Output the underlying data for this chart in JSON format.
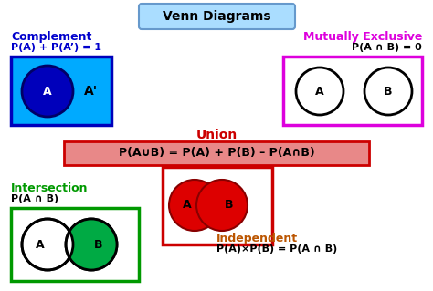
{
  "title": "Venn Diagrams",
  "bg_color": "#ffffff",
  "outer_border_color": "#999999",
  "complement_label": "Complement",
  "complement_eq": "P(A) + P(A’) = 1",
  "complement_color": "#0000cc",
  "complement_box_fill": "#00aaff",
  "complement_box_border": "#0000bb",
  "mutually_label": "Mutually Exclusive",
  "mutually_eq": "P(A ∩ B) = 0",
  "mutually_color": "#dd00dd",
  "mutually_box_border": "#dd00dd",
  "union_label": "Union",
  "union_eq": "P(A∪B) = P(A) + P(B) – P(A∩B)",
  "union_color": "#cc0000",
  "union_bar_fill": "#e88888",
  "union_box_border": "#cc0000",
  "intersection_label": "Intersection",
  "intersection_eq": "P(A ∩ B)",
  "intersection_color": "#009900",
  "intersection_box_border": "#009900",
  "intersection_fill": "#00aa44",
  "independent_label": "Independent",
  "independent_eq": "P(A)×P(B) = P(A ∩ B)",
  "independent_color": "#bb5500",
  "title_box_fill": "#aaddff",
  "title_box_border": "#6699cc"
}
